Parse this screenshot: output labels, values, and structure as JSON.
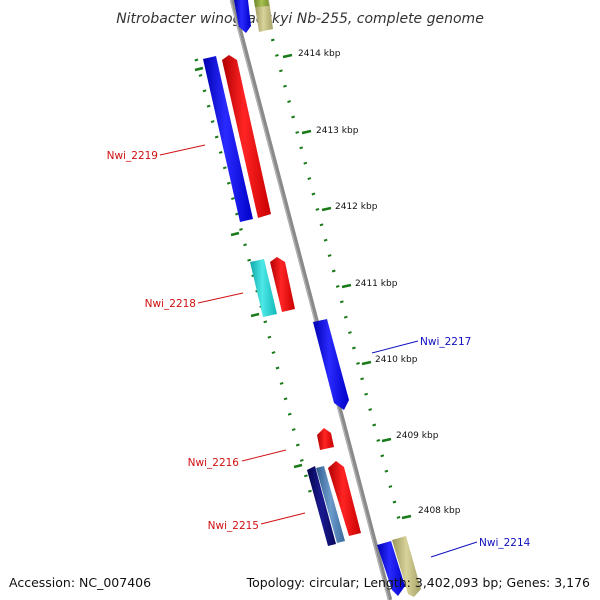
{
  "title": "Nitrobacter winogradskyi Nb-255, complete genome",
  "footer": {
    "accession": "Accession: NC_007406",
    "summary": "Topology: circular; Length: 3,402,093 bp; Genes: 3,176"
  },
  "scale_labels": [
    "2414 kbp",
    "2413 kbp",
    "2412 kbp",
    "2411 kbp",
    "2410 kbp",
    "2409 kbp",
    "2408 kbp"
  ],
  "gene_labels": [
    {
      "name": "Nwi_2219",
      "strand": "minus",
      "color": "#d01010"
    },
    {
      "name": "Nwi_2218",
      "strand": "minus",
      "color": "#d01010"
    },
    {
      "name": "Nwi_2217",
      "strand": "plus",
      "color": "#1010c0"
    },
    {
      "name": "Nwi_2216",
      "strand": "minus",
      "color": "#d01010"
    },
    {
      "name": "Nwi_2215",
      "strand": "minus",
      "color": "#d01010"
    },
    {
      "name": "Nwi_2214",
      "strand": "plus",
      "color": "#1010c0"
    }
  ],
  "colors": {
    "backbone": "#8a8a8a",
    "tick": "#1a7a1a",
    "blue_feature": "#1a1aee",
    "red_feature": "#ee1111",
    "cyan_feature": "#22cccc",
    "navy_feature": "#10107a",
    "steel_feature": "#4a7ab0",
    "khaki_feature": "#bbb67a",
    "olive_feature": "#8aa03a"
  }
}
